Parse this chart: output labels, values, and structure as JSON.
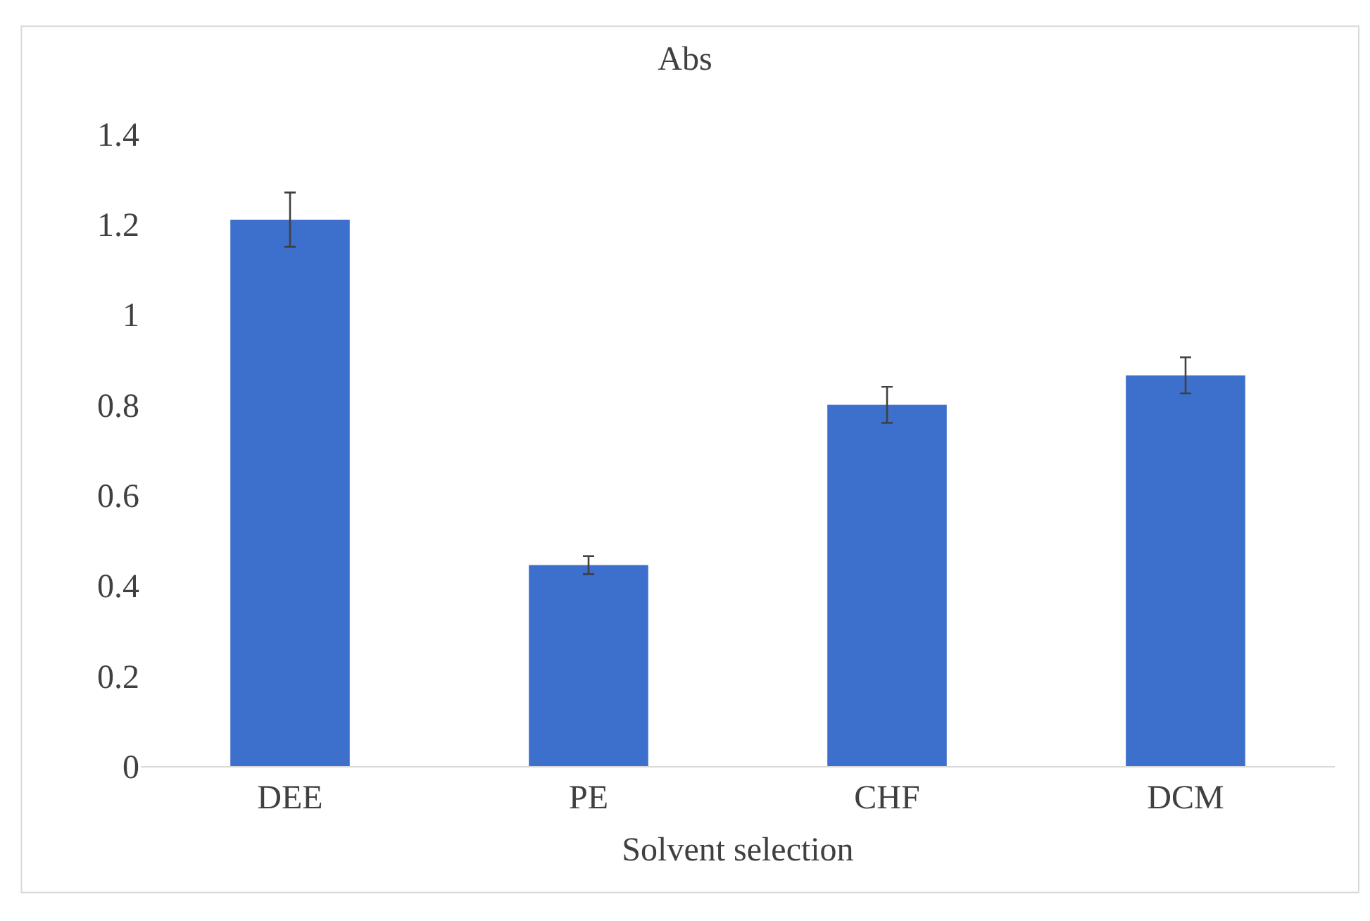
{
  "chart_data": {
    "type": "bar",
    "title": "Abs",
    "xlabel": "Solvent selection",
    "categories": [
      "DEE",
      "PE",
      "CHF",
      "DCM"
    ],
    "values": [
      1.21,
      0.445,
      0.8,
      0.865
    ],
    "errors": [
      0.06,
      0.02,
      0.04,
      0.04
    ],
    "color": "#3d6fcc",
    "ylim": [
      0,
      1.4
    ],
    "yticks": [
      0,
      0.2,
      0.4,
      0.6,
      0.8,
      1,
      1.2,
      1.4
    ]
  }
}
